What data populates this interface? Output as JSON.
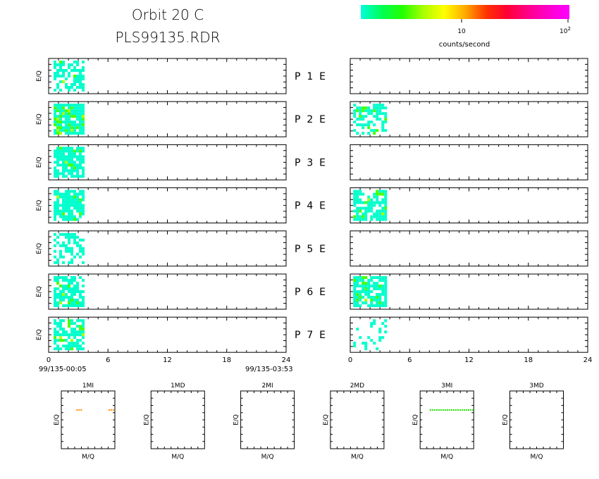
{
  "header": {
    "title": "Orbit 20 C",
    "subtitle": "PLS99135.RDR"
  },
  "colorbar": {
    "gradient": [
      "#00ffdd",
      "#00ff55",
      "#22ff00",
      "#aaff00",
      "#ffff00",
      "#ffaa00",
      "#ff3300",
      "#ff0033",
      "#ff0088",
      "#ff00cc",
      "#ff00ff"
    ],
    "tick_10": "10",
    "tick_100_base": "10",
    "tick_100_exp": "2",
    "label": "counts/second"
  },
  "chart_data": {
    "type": "heatmap",
    "time_axis": {
      "range": [
        0,
        24
      ],
      "ticks": [
        "0",
        "6",
        "12",
        "18",
        "24"
      ],
      "start_label": "99/135-00:05",
      "end_label": "99/135-03:53"
    },
    "ylabel": "E/Q",
    "palette": {
      "low": "#00ffcc",
      "mid": "#44ff00",
      "high": "#aaff00"
    },
    "rows": [
      {
        "label": "P  1  E",
        "left": {
          "x": [
            0.5,
            3.8
          ],
          "density": 0.55,
          "high": 0.02
        },
        "right": null
      },
      {
        "label": "P  2  E",
        "left": {
          "x": [
            0.5,
            3.8
          ],
          "density": 0.92,
          "high": 0.18
        },
        "right": {
          "x": [
            0.3,
            3.8
          ],
          "density": 0.55,
          "high": 0.15
        }
      },
      {
        "label": "P  3  E",
        "left": {
          "x": [
            0.5,
            3.8
          ],
          "density": 0.75,
          "high": 0.04
        },
        "right": null
      },
      {
        "label": "P  4  E",
        "left": {
          "x": [
            0.5,
            3.8
          ],
          "density": 0.82,
          "high": 0.06
        },
        "right": {
          "x": [
            0.3,
            3.8
          ],
          "density": 0.8,
          "high": 0.08
        }
      },
      {
        "label": "P  5  E",
        "left": {
          "x": [
            0.5,
            3.8
          ],
          "density": 0.45,
          "high": 0.0
        },
        "right": null
      },
      {
        "label": "P  6  E",
        "left": {
          "x": [
            0.5,
            3.8
          ],
          "density": 0.72,
          "high": 0.08
        },
        "right": {
          "x": [
            0.3,
            3.8
          ],
          "density": 0.82,
          "high": 0.12
        }
      },
      {
        "label": "P  7  E",
        "left": {
          "x": [
            0.5,
            3.8
          ],
          "density": 0.7,
          "high": 0.12
        },
        "right": {
          "x": [
            0.3,
            3.8
          ],
          "density": 0.25,
          "high": 0.0
        }
      }
    ],
    "mass_panels": [
      {
        "title": "1MI",
        "xlabel": "M/Q",
        "ylabel": "E/Q",
        "trace": {
          "color": "#ff8800",
          "y_frac": 0.33,
          "segments": [
            [
              0.28,
              0.38
            ],
            [
              0.88,
              0.98
            ]
          ],
          "dotted": true
        }
      },
      {
        "title": "1MD",
        "xlabel": "M/Q",
        "ylabel": "E/Q",
        "trace": null
      },
      {
        "title": "2MI",
        "xlabel": "M/Q",
        "ylabel": "E/Q",
        "trace": null
      },
      {
        "title": "2MD",
        "xlabel": "M/Q",
        "ylabel": "E/Q",
        "trace": null
      },
      {
        "title": "3MI",
        "xlabel": "M/Q",
        "ylabel": "E/Q",
        "trace": {
          "color": "#22dd00",
          "y_frac": 0.33,
          "segments": [
            [
              0.18,
              1.0
            ]
          ],
          "dotted": true
        }
      },
      {
        "title": "3MD",
        "xlabel": "M/Q",
        "ylabel": "E/Q",
        "trace": null
      }
    ]
  }
}
